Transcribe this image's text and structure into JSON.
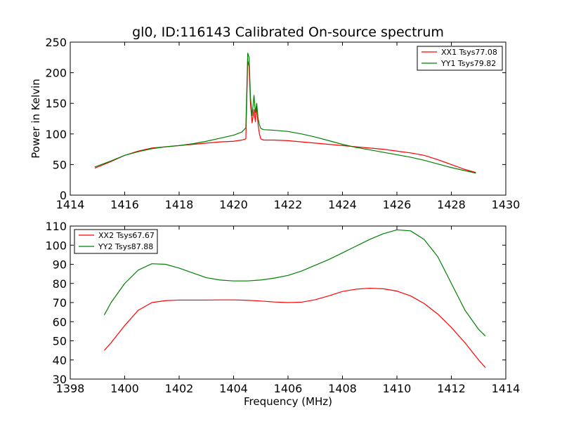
{
  "chart_data": [
    {
      "type": "line",
      "title": "gl0, ID:116143 Calibrated On-source spectrum",
      "xlabel": "",
      "ylabel": "Power in Kelvin",
      "xlim": [
        1414,
        1430
      ],
      "ylim": [
        0,
        250
      ],
      "xticks": [
        "1414",
        "1416",
        "1418",
        "1420",
        "1422",
        "1424",
        "1426",
        "1428",
        "1430"
      ],
      "yticks": [
        "0",
        "50",
        "100",
        "150",
        "200",
        "250"
      ],
      "grid": false,
      "legend_position": "top-right",
      "series": [
        {
          "name": "XX1 Tsys77.08",
          "color": "#ff0000",
          "x": [
            1414.9,
            1415.5,
            1416.0,
            1416.5,
            1417.0,
            1417.5,
            1418.0,
            1418.5,
            1419.0,
            1419.5,
            1420.0,
            1420.3,
            1420.45,
            1420.52,
            1420.57,
            1420.62,
            1420.68,
            1420.75,
            1420.8,
            1420.85,
            1420.9,
            1420.95,
            1421.0,
            1421.1,
            1421.5,
            1422.0,
            1422.5,
            1423.0,
            1423.5,
            1424.0,
            1424.5,
            1425.0,
            1425.5,
            1426.0,
            1426.5,
            1427.0,
            1427.5,
            1428.0,
            1428.5,
            1428.9
          ],
          "y": [
            44,
            55,
            65,
            72,
            77,
            79,
            81,
            83,
            85,
            87,
            88,
            90,
            92,
            220,
            210,
            150,
            118,
            140,
            120,
            145,
            115,
            100,
            92,
            90,
            90,
            89,
            87,
            85,
            83,
            81,
            79,
            77,
            75,
            72,
            69,
            65,
            58,
            50,
            42,
            37
          ]
        },
        {
          "name": "YY1 Tsys79.82",
          "color": "#008000",
          "x": [
            1414.9,
            1415.5,
            1416.0,
            1416.5,
            1417.0,
            1417.5,
            1418.0,
            1418.5,
            1419.0,
            1419.5,
            1420.0,
            1420.3,
            1420.45,
            1420.52,
            1420.57,
            1420.62,
            1420.68,
            1420.75,
            1420.8,
            1420.85,
            1420.9,
            1420.95,
            1421.0,
            1421.1,
            1421.5,
            1422.0,
            1422.5,
            1423.0,
            1423.5,
            1424.0,
            1424.5,
            1425.0,
            1425.5,
            1426.0,
            1426.5,
            1427.0,
            1427.5,
            1428.0,
            1428.5,
            1428.9
          ],
          "y": [
            46,
            56,
            65,
            71,
            76,
            79,
            81,
            84,
            88,
            93,
            98,
            103,
            110,
            232,
            225,
            160,
            130,
            163,
            135,
            150,
            125,
            115,
            109,
            107,
            106,
            104,
            100,
            95,
            89,
            83,
            78,
            74,
            70,
            66,
            62,
            57,
            51,
            45,
            40,
            36
          ]
        }
      ]
    },
    {
      "type": "line",
      "title": "",
      "xlabel": "Frequency (MHz)",
      "ylabel": "",
      "xlim": [
        1398,
        1414
      ],
      "ylim": [
        30,
        110
      ],
      "xticks": [
        "1398",
        "1400",
        "1402",
        "1404",
        "1406",
        "1408",
        "1410",
        "1412",
        "1414"
      ],
      "yticks": [
        "30",
        "40",
        "50",
        "60",
        "70",
        "80",
        "90",
        "100",
        "110"
      ],
      "grid": false,
      "legend_position": "top-left",
      "series": [
        {
          "name": "XX2 Tsys67.67",
          "color": "#ff0000",
          "x": [
            1399.25,
            1399.5,
            1400.0,
            1400.5,
            1401.0,
            1401.5,
            1402.0,
            1402.5,
            1403.0,
            1403.5,
            1404.0,
            1404.5,
            1405.0,
            1405.5,
            1406.0,
            1406.5,
            1407.0,
            1407.5,
            1408.0,
            1408.5,
            1409.0,
            1409.5,
            1410.0,
            1410.5,
            1411.0,
            1411.5,
            1412.0,
            1412.5,
            1413.0,
            1413.25
          ],
          "y": [
            45,
            49,
            58,
            66,
            70,
            71,
            71.3,
            71.3,
            71.3,
            71.4,
            71.4,
            71.2,
            70.8,
            70.3,
            70,
            70.2,
            71.5,
            73.5,
            75.8,
            77,
            77.5,
            77.2,
            76,
            73.5,
            69.5,
            64,
            57,
            49,
            40,
            36
          ]
        },
        {
          "name": "YY2 Tsys87.88",
          "color": "#008000",
          "x": [
            1399.25,
            1399.5,
            1400.0,
            1400.5,
            1401.0,
            1401.5,
            1402.0,
            1402.5,
            1403.0,
            1403.5,
            1404.0,
            1404.5,
            1405.0,
            1405.5,
            1406.0,
            1406.5,
            1407.0,
            1407.5,
            1408.0,
            1408.5,
            1409.0,
            1409.5,
            1410.0,
            1410.5,
            1411.0,
            1411.5,
            1412.0,
            1412.5,
            1413.0,
            1413.25
          ],
          "y": [
            63.5,
            70,
            80,
            87,
            90.3,
            90,
            88,
            85.5,
            83,
            81.8,
            81.3,
            81.3,
            81.8,
            82.8,
            84.2,
            86.5,
            89.5,
            92.5,
            96,
            99.5,
            103,
            106,
            108,
            107.5,
            103,
            94,
            80,
            66,
            56,
            52.5
          ]
        }
      ]
    }
  ]
}
